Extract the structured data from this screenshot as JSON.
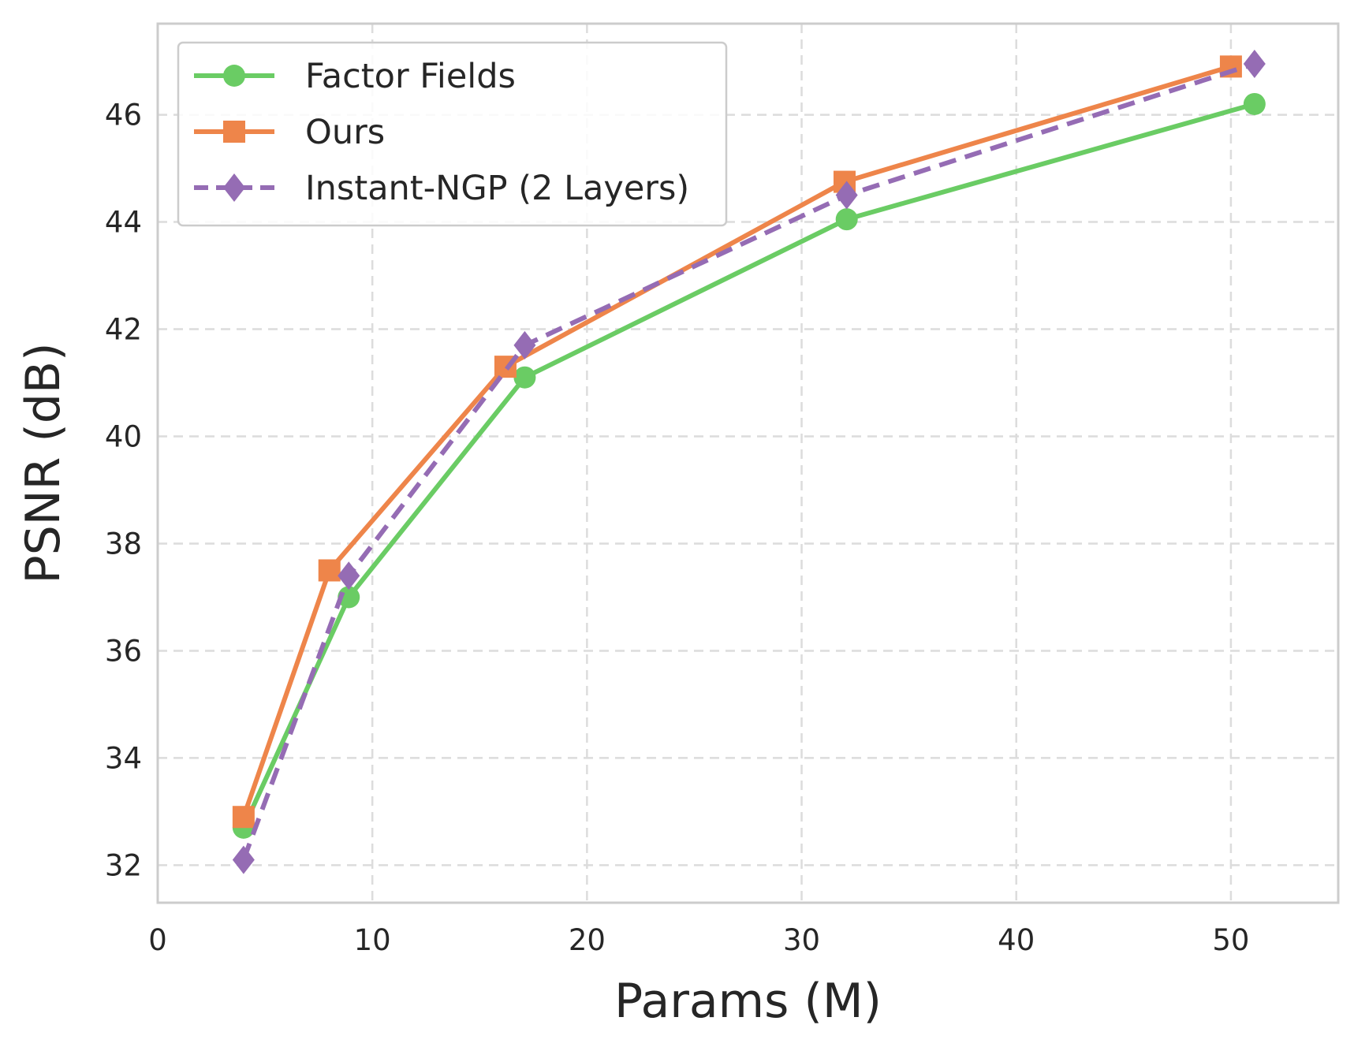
{
  "chart_data": {
    "type": "line",
    "title": "",
    "xlabel": "Params (M)",
    "ylabel": "PSNR (dB)",
    "xlim": [
      0,
      55
    ],
    "ylim": [
      31.3,
      47.7
    ],
    "xticks": [
      0,
      10,
      20,
      30,
      40,
      50
    ],
    "yticks": [
      32,
      34,
      36,
      38,
      40,
      42,
      44,
      46
    ],
    "grid": true,
    "legend_position": "top-left",
    "series": [
      {
        "name": "Factor Fields",
        "color": "#6acc64",
        "line_style": "solid",
        "marker": "circle",
        "x": [
          4,
          8.9,
          17.1,
          32.1,
          51.1
        ],
        "y": [
          32.7,
          37.0,
          41.1,
          44.05,
          46.2
        ]
      },
      {
        "name": "Ours",
        "color": "#ee854a",
        "line_style": "solid",
        "marker": "square",
        "x": [
          4,
          8,
          16.2,
          32,
          50
        ],
        "y": [
          32.9,
          37.5,
          41.3,
          44.75,
          46.9
        ]
      },
      {
        "name": "Instant-NGP (2 Layers)",
        "color": "#956cb4",
        "line_style": "dashed",
        "marker": "diamond",
        "x": [
          4,
          8.9,
          17.1,
          32.1,
          51.1
        ],
        "y": [
          32.1,
          37.4,
          41.7,
          44.5,
          46.95
        ]
      }
    ]
  }
}
